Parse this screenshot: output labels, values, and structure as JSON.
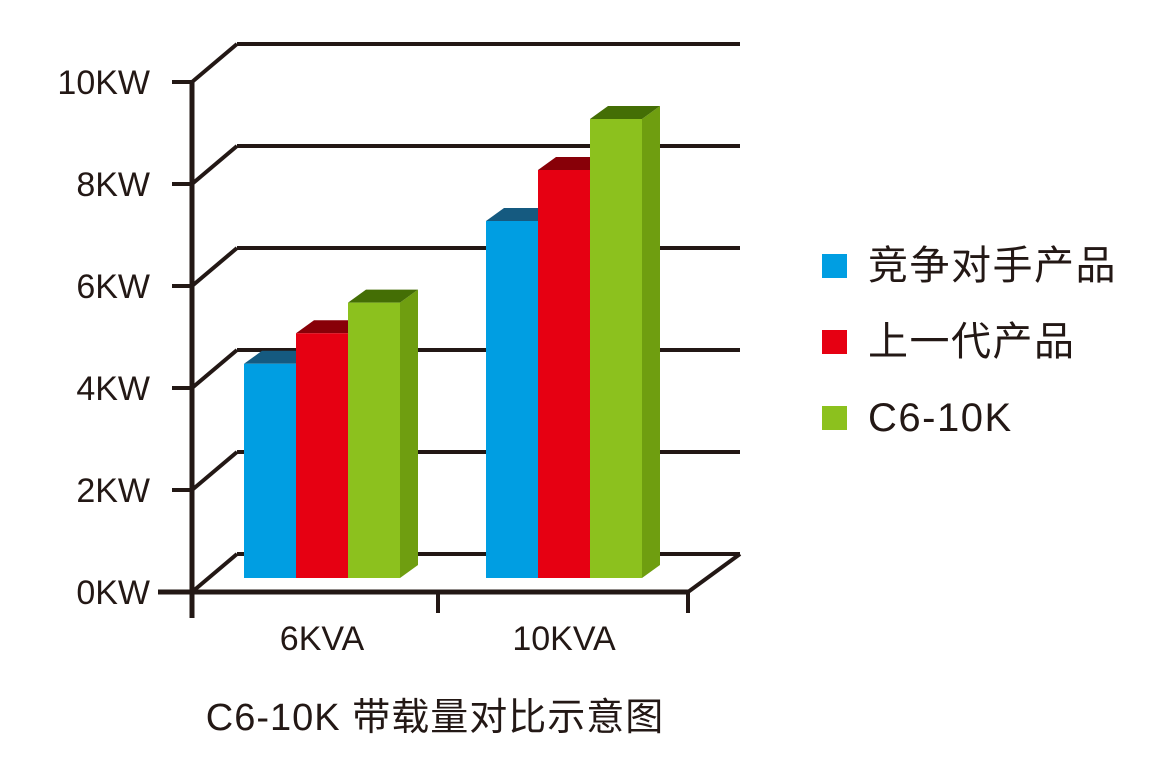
{
  "page": {
    "background_color": "#ffffff",
    "text_color": "#231815"
  },
  "chart_data": {
    "type": "bar",
    "style": "3d-extruded-grouped",
    "title": "C6-10K 带载量对比示意图",
    "categories": [
      "6KVA",
      "10KVA"
    ],
    "category_keys": [
      "6kva",
      "10kva"
    ],
    "series": [
      {
        "key": "competitor",
        "name": "竞争对手产品",
        "values": [
          4.2,
          7.0
        ],
        "colors": {
          "front": "#009EE2",
          "top": "#155A80",
          "side": "#0C6FA6"
        }
      },
      {
        "key": "previous-gen",
        "name": "上一代产品",
        "values": [
          4.8,
          8.0
        ],
        "colors": {
          "front": "#E60012",
          "top": "#880008",
          "side": "#B2000E"
        }
      },
      {
        "key": "c6-10k",
        "name": "C6-10K",
        "values": [
          5.4,
          9.0
        ],
        "colors": {
          "front": "#8CC11E",
          "top": "#446E05",
          "side": "#6F9E10"
        }
      }
    ],
    "y_axis": {
      "unit": "KW",
      "tick_labels": [
        "0KW",
        "2KW",
        "4KW",
        "6KW",
        "8KW",
        "10KW"
      ],
      "tick_values": [
        0,
        2,
        4,
        6,
        8,
        10
      ],
      "lim": [
        0,
        10
      ]
    },
    "grid": true,
    "legend_position": "right",
    "axis_color": "#231815",
    "text_color": "#231815"
  }
}
